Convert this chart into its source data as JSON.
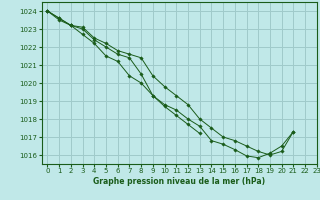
{
  "title": "Graphe pression niveau de la mer (hPa)",
  "bg_color": "#c0e8e8",
  "grid_color": "#a0caca",
  "line_color": "#1a5c1a",
  "marker_color": "#1a5c1a",
  "xlim": [
    -0.5,
    23
  ],
  "ylim": [
    1015.5,
    1024.5
  ],
  "xticks": [
    0,
    1,
    2,
    3,
    4,
    5,
    6,
    7,
    8,
    9,
    10,
    11,
    12,
    13,
    14,
    15,
    16,
    17,
    18,
    19,
    20,
    21,
    22,
    23
  ],
  "yticks": [
    1016,
    1017,
    1018,
    1019,
    1020,
    1021,
    1022,
    1023,
    1024
  ],
  "s1": [
    1024.0,
    1023.6,
    1023.2,
    1023.1,
    1022.5,
    1022.2,
    1021.8,
    1021.6,
    1021.4,
    1020.4,
    1019.8,
    1019.3,
    1018.8,
    1018.0,
    1017.5,
    1017.0,
    1016.8,
    1016.5,
    1016.2,
    1016.0,
    1016.2,
    1017.3,
    null,
    null
  ],
  "s2": [
    1024.0,
    1023.6,
    1023.2,
    1023.0,
    1022.4,
    1022.0,
    1021.6,
    1021.4,
    1020.5,
    1019.3,
    1018.8,
    1018.5,
    1018.0,
    1017.6,
    1016.8,
    1016.6,
    1016.3,
    1015.95,
    1015.85,
    1016.1,
    1016.5,
    1017.3,
    null,
    null
  ],
  "s3": [
    1024.0,
    1023.5,
    1023.2,
    1022.7,
    1022.2,
    1021.5,
    1021.2,
    1020.4,
    1020.0,
    1019.3,
    1018.7,
    1018.2,
    1017.7,
    1017.2,
    null,
    null,
    null,
    null,
    null,
    null,
    null,
    null,
    null,
    null
  ]
}
